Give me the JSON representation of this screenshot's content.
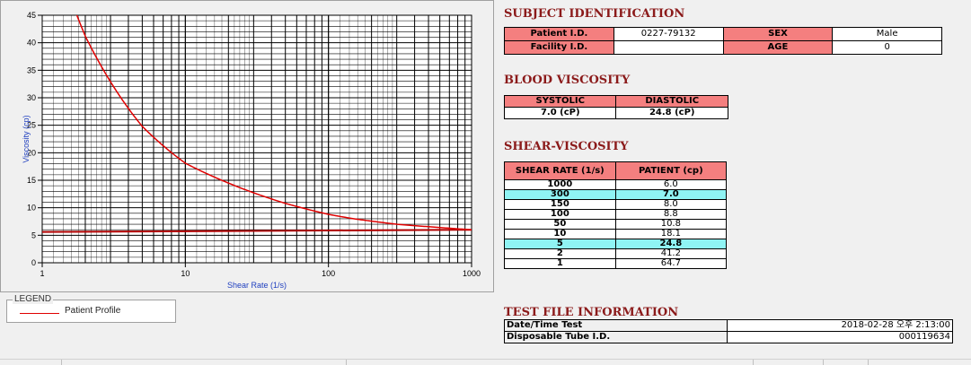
{
  "chart_data": {
    "type": "line",
    "title": "",
    "xlabel": "Shear Rate (1/s)",
    "ylabel": "Viscosity (cp)",
    "x_scale": "log",
    "xlim": [
      1,
      1000
    ],
    "ylim": [
      0,
      45
    ],
    "x_ticks": [
      "1",
      "10",
      "100",
      "1000"
    ],
    "y_ticks": [
      "0",
      "5",
      "10",
      "15",
      "20",
      "25",
      "30",
      "35",
      "40",
      "45"
    ],
    "grid": true,
    "legend_position": "below-left",
    "series": [
      {
        "name": "Patient Profile",
        "color": "#e00000",
        "x": [
          1,
          2,
          5,
          10,
          50,
          100,
          150,
          300,
          1000
        ],
        "y": [
          64.7,
          41.2,
          24.8,
          18.1,
          10.8,
          8.8,
          8.0,
          7.0,
          6.0
        ]
      }
    ],
    "reference_line": {
      "x": [
        1,
        1000
      ],
      "y": [
        5.6,
        6.0
      ],
      "color": "#b00000"
    }
  },
  "legend": {
    "title": "LEGEND",
    "label": "Patient Profile"
  },
  "subject": {
    "title": "SUBJECT IDENTIFICATION",
    "patient_id_label": "Patient I.D.",
    "patient_id": "0227-79132",
    "sex_label": "SEX",
    "sex": "Male",
    "facility_id_label": "Facility I.D.",
    "facility_id": "",
    "age_label": "AGE",
    "age": "0"
  },
  "blood": {
    "title": "BLOOD VISCOSITY",
    "systolic_label": "SYSTOLIC",
    "diastolic_label": "DIASTOLIC",
    "systolic": "7.0 (cP)",
    "diastolic": "24.8 (cP)"
  },
  "shear": {
    "title": "SHEAR-VISCOSITY",
    "col_rate": "SHEAR RATE (1/s)",
    "col_patient": "PATIENT (cp)",
    "rows": [
      {
        "rate": "1000",
        "value": "6.0"
      },
      {
        "rate": "300",
        "value": "7.0"
      },
      {
        "rate": "150",
        "value": "8.0"
      },
      {
        "rate": "100",
        "value": "8.8"
      },
      {
        "rate": "50",
        "value": "10.8"
      },
      {
        "rate": "10",
        "value": "18.1"
      },
      {
        "rate": "5",
        "value": "24.8"
      },
      {
        "rate": "2",
        "value": "41.2"
      },
      {
        "rate": "1",
        "value": "64.7"
      }
    ]
  },
  "file": {
    "title": "TEST FILE INFORMATION",
    "datetime_label": "Date/Time Test",
    "datetime": "2018-02-28  오후 2:13:00",
    "tube_label": "Disposable Tube I.D.",
    "tube": "000119634"
  }
}
